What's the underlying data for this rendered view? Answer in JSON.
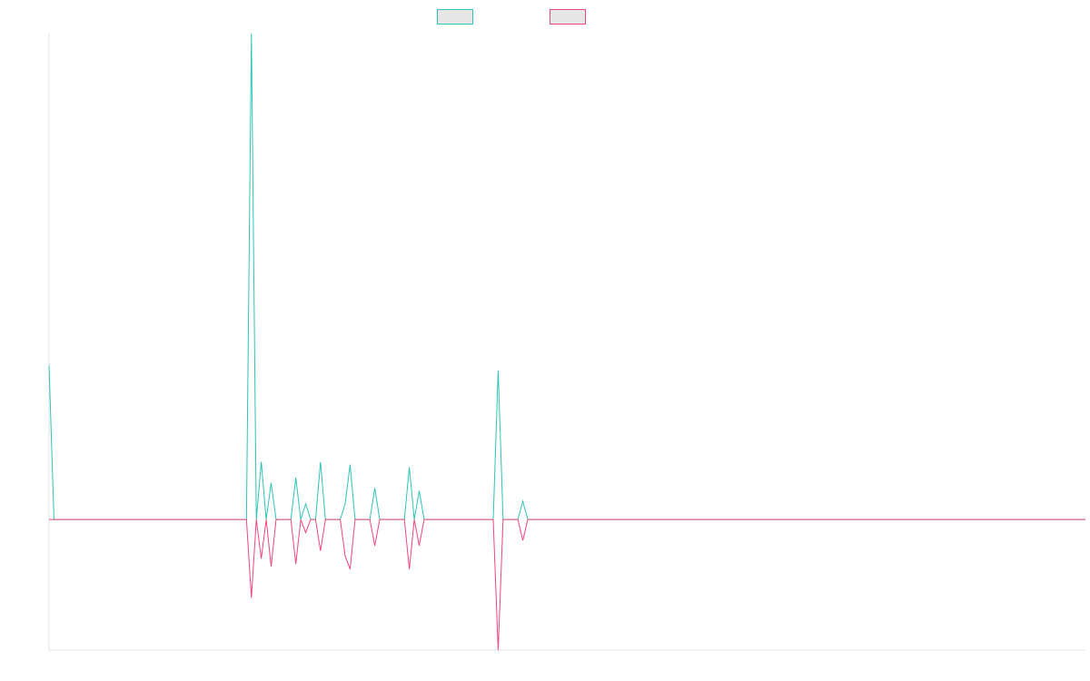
{
  "colors": {
    "background": "#ffffff",
    "axis": "#e0e0e0",
    "legend_fill": "#e6e6e6"
  },
  "chart_data": {
    "type": "line",
    "title": "",
    "xlabel": "",
    "ylabel": "",
    "grid": false,
    "legend_placement": "top-center",
    "x_count": 211,
    "xlim": [
      0,
      210
    ],
    "ylim": [
      -0.5,
      1.86
    ],
    "series": [
      {
        "color": "#2ec4b6",
        "points": [
          [
            0,
            0.59
          ],
          [
            1,
            0
          ],
          [
            40,
            0
          ],
          [
            41,
            1.86
          ],
          [
            42,
            0
          ],
          [
            43,
            0.22
          ],
          [
            44,
            0
          ],
          [
            45,
            0.14
          ],
          [
            46,
            0
          ],
          [
            49,
            0
          ],
          [
            50,
            0.16
          ],
          [
            51,
            0
          ],
          [
            52,
            0.06
          ],
          [
            53,
            0
          ],
          [
            54,
            0
          ],
          [
            55,
            0.22
          ],
          [
            56,
            0
          ],
          [
            59,
            0
          ],
          [
            60,
            0.06
          ],
          [
            61,
            0.21
          ],
          [
            62,
            0
          ],
          [
            65,
            0
          ],
          [
            66,
            0.12
          ],
          [
            67,
            0
          ],
          [
            72,
            0
          ],
          [
            73,
            0.2
          ],
          [
            74,
            0
          ],
          [
            75,
            0.11
          ],
          [
            76,
            0
          ],
          [
            90,
            0
          ],
          [
            91,
            0.57
          ],
          [
            92,
            0
          ],
          [
            95,
            0
          ],
          [
            96,
            0.07
          ],
          [
            97,
            0
          ],
          [
            210,
            0
          ]
        ]
      },
      {
        "color": "#f0467a",
        "points": [
          [
            0,
            0
          ],
          [
            40,
            0
          ],
          [
            41,
            -0.3
          ],
          [
            42,
            0
          ],
          [
            43,
            -0.15
          ],
          [
            44,
            0
          ],
          [
            45,
            -0.18
          ],
          [
            46,
            0
          ],
          [
            49,
            0
          ],
          [
            50,
            -0.17
          ],
          [
            51,
            0
          ],
          [
            52,
            -0.05
          ],
          [
            53,
            0
          ],
          [
            54,
            0
          ],
          [
            55,
            -0.12
          ],
          [
            56,
            0
          ],
          [
            59,
            0
          ],
          [
            60,
            -0.14
          ],
          [
            61,
            -0.19
          ],
          [
            62,
            0
          ],
          [
            65,
            0
          ],
          [
            66,
            -0.1
          ],
          [
            67,
            0
          ],
          [
            72,
            0
          ],
          [
            73,
            -0.19
          ],
          [
            74,
            0
          ],
          [
            75,
            -0.1
          ],
          [
            76,
            0
          ],
          [
            90,
            0
          ],
          [
            91,
            -0.5
          ],
          [
            92,
            0
          ],
          [
            95,
            0
          ],
          [
            96,
            -0.08
          ],
          [
            97,
            0
          ],
          [
            210,
            0
          ]
        ]
      }
    ]
  }
}
